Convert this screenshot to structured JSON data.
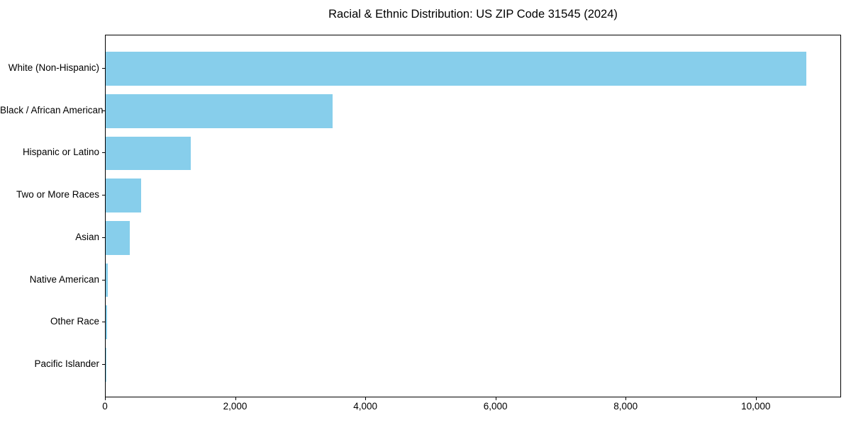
{
  "title": "Racial & Ethnic Distribution: US ZIP Code 31545 (2024)",
  "colors": {
    "bar": "#87CEEB",
    "text": "#000000",
    "spine": "#000000",
    "background": "#ffffff"
  },
  "chart_data": {
    "type": "bar",
    "orientation": "horizontal",
    "title": "Racial & Ethnic Distribution: US ZIP Code 31545 (2024)",
    "xlabel": "",
    "ylabel": "",
    "categories": [
      "White (Non-Hispanic)",
      "Black / African American",
      "Hispanic or Latino",
      "Two or More Races",
      "Asian",
      "Native American",
      "Other Race",
      "Pacific Islander"
    ],
    "values": [
      10770,
      3490,
      1310,
      545,
      370,
      30,
      25,
      10
    ],
    "bar_color": "#87CEEB",
    "xlim": [
      0,
      11310
    ],
    "x_ticks": [
      0,
      2000,
      4000,
      6000,
      8000,
      10000
    ],
    "x_tick_labels": [
      "0",
      "2,000",
      "4,000",
      "6,000",
      "8,000",
      "10,000"
    ],
    "grid": false,
    "legend": false,
    "category_order": "largest value at top"
  }
}
